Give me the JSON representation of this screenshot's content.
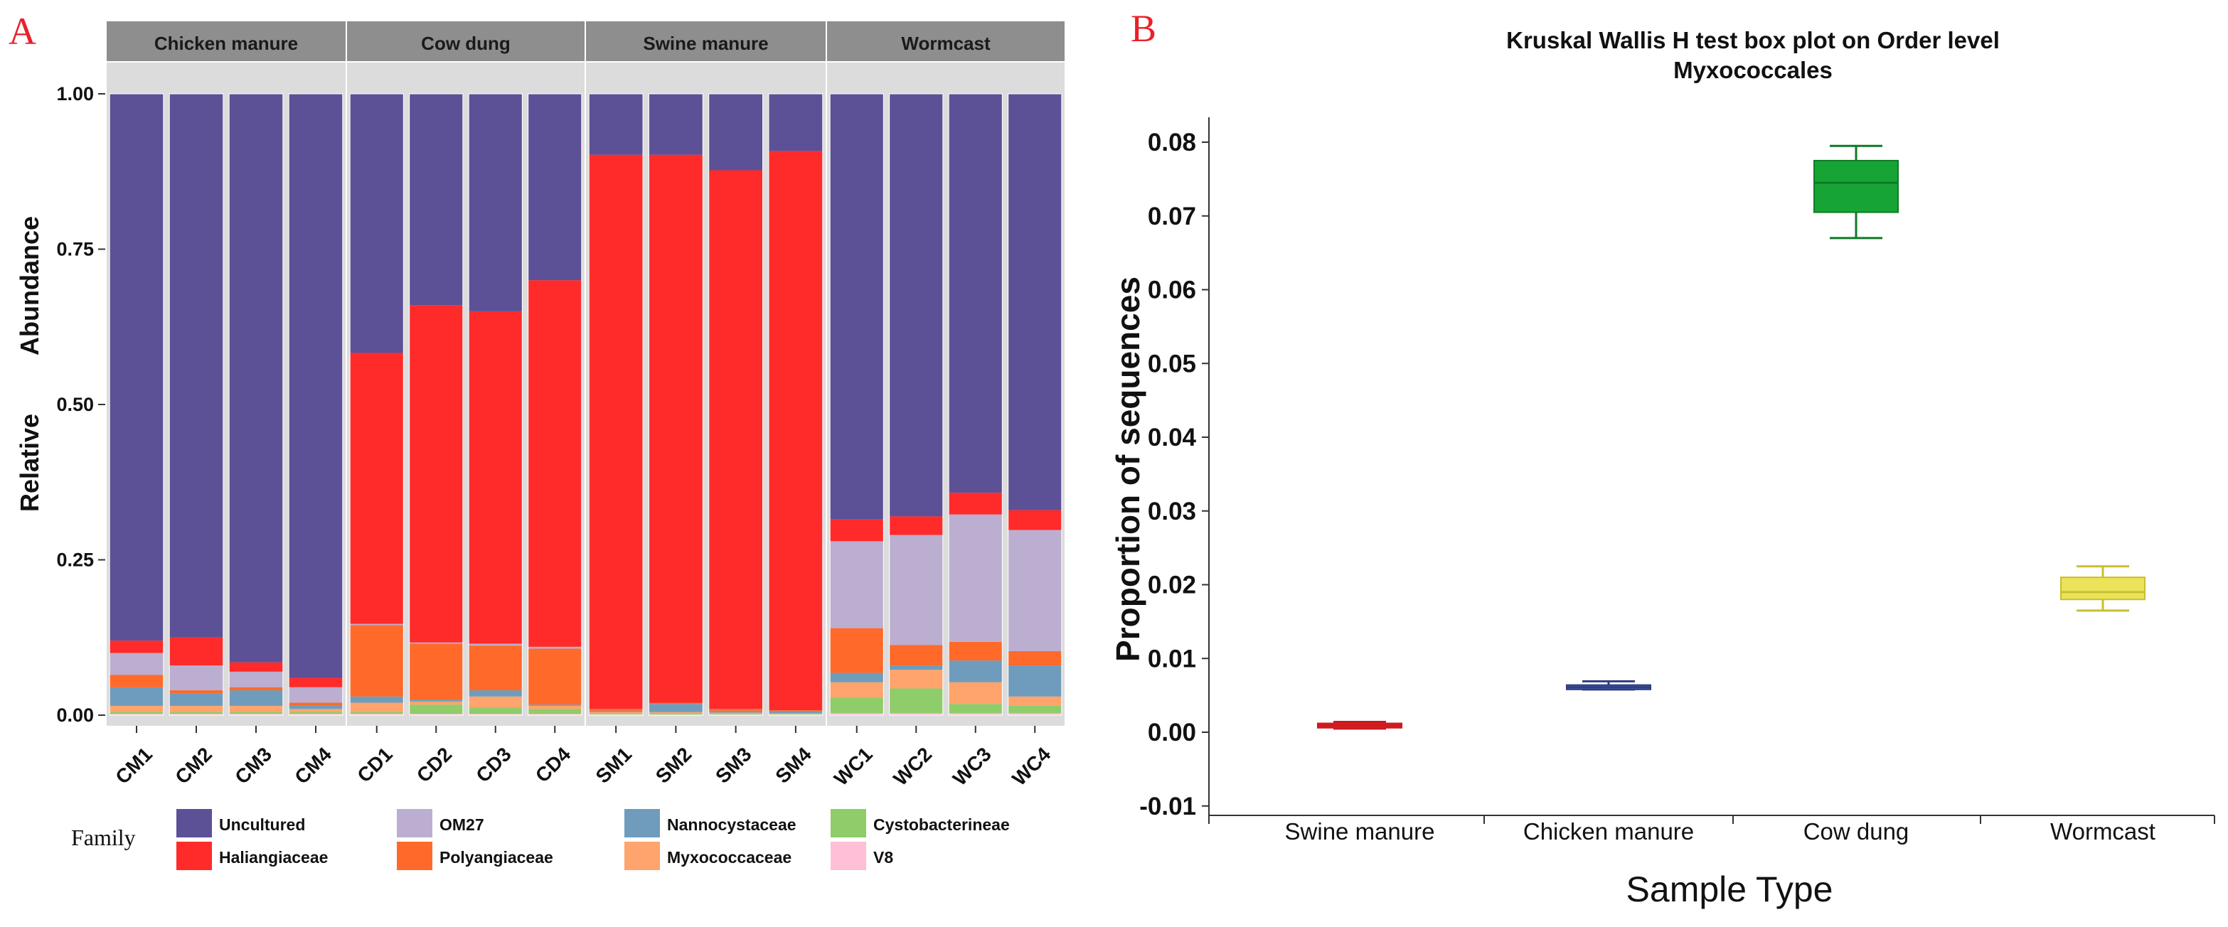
{
  "colors": {
    "Uncultured": "#5c5096",
    "Haliangiaceae": "#ff2b2b",
    "OM27": "#bcaed0",
    "Polyangiaceae": "#ff6a2a",
    "Nannocystaceae": "#6f9cbc",
    "Myxococcaceae": "#ffa46c",
    "Cystobacterineae": "#8fcc6a",
    "V8": "#ffbfd6",
    "panel_bg": "#dcdcdc",
    "strip_bg": "#8e8e8e",
    "label_red": "#e8212c"
  },
  "chart_data": [
    {
      "type": "bar",
      "stacked": true,
      "panel_label": "A",
      "ylabel_words": [
        "Relative",
        "Abundance"
      ],
      "ylim": [
        0,
        1
      ],
      "yticks": [
        "0.00",
        "0.25",
        "0.50",
        "0.75",
        "1.00"
      ],
      "legend_title": "Family",
      "legend": [
        "Uncultured",
        "OM27",
        "Nannocystaceae",
        "Cystobacterineae",
        "Haliangiaceae",
        "Polyangiaceae",
        "Myxococcaceae",
        "V8"
      ],
      "facets": [
        {
          "name": "Chicken manure",
          "samples": [
            {
              "id": "CM1",
              "V8": 0.002,
              "Cystobacterineae": 0.003,
              "Myxococcaceae": 0.01,
              "Nannocystaceae": 0.03,
              "Polyangiaceae": 0.02,
              "OM27": 0.035,
              "Haliangiaceae": 0.02,
              "Uncultured": 0.88
            },
            {
              "id": "CM2",
              "V8": 0.002,
              "Cystobacterineae": 0.003,
              "Myxococcaceae": 0.01,
              "Nannocystaceae": 0.02,
              "Polyangiaceae": 0.005,
              "OM27": 0.04,
              "Haliangiaceae": 0.045,
              "Uncultured": 0.875
            },
            {
              "id": "CM3",
              "V8": 0.002,
              "Cystobacterineae": 0.003,
              "Myxococcaceae": 0.01,
              "Nannocystaceae": 0.025,
              "Polyangiaceae": 0.005,
              "OM27": 0.025,
              "Haliangiaceae": 0.015,
              "Uncultured": 0.915
            },
            {
              "id": "CM4",
              "V8": 0.002,
              "Cystobacterineae": 0.003,
              "Myxococcaceae": 0.005,
              "Nannocystaceae": 0.005,
              "Polyangiaceae": 0.005,
              "OM27": 0.025,
              "Haliangiaceae": 0.015,
              "Uncultured": 0.94
            }
          ]
        },
        {
          "name": "Cow dung",
          "samples": [
            {
              "id": "CD1",
              "V8": 0.002,
              "Cystobacterineae": 0.003,
              "Myxococcaceae": 0.015,
              "Nannocystaceae": 0.01,
              "Polyangiaceae": 0.115,
              "OM27": 0.002,
              "Haliangiaceae": 0.436,
              "Uncultured": 0.417
            },
            {
              "id": "CD2",
              "V8": 0.002,
              "Cystobacterineae": 0.015,
              "Myxococcaceae": 0.005,
              "Nannocystaceae": 0.003,
              "Polyangiaceae": 0.09,
              "OM27": 0.002,
              "Haliangiaceae": 0.543,
              "Uncultured": 0.34
            },
            {
              "id": "CD3",
              "V8": 0.002,
              "Cystobacterineae": 0.01,
              "Myxococcaceae": 0.018,
              "Nannocystaceae": 0.01,
              "Polyangiaceae": 0.072,
              "OM27": 0.003,
              "Haliangiaceae": 0.535,
              "Uncultured": 0.35
            },
            {
              "id": "CD4",
              "V8": 0.002,
              "Cystobacterineae": 0.008,
              "Myxococcaceae": 0.005,
              "Nannocystaceae": 0.002,
              "Polyangiaceae": 0.09,
              "OM27": 0.003,
              "Haliangiaceae": 0.59,
              "Uncultured": 0.3
            }
          ]
        },
        {
          "name": "Swine manure",
          "samples": [
            {
              "id": "SM1",
              "V8": 0.001,
              "Cystobacterineae": 0.001,
              "Myxococcaceae": 0.003,
              "Nannocystaceae": 0.002,
              "Polyangiaceae": 0.003,
              "OM27": 0.0,
              "Haliangiaceae": 0.892,
              "Uncultured": 0.098
            },
            {
              "id": "SM2",
              "V8": 0.001,
              "Cystobacterineae": 0.002,
              "Myxococcaceae": 0.002,
              "Nannocystaceae": 0.013,
              "Polyangiaceae": 0.002,
              "OM27": 0.0,
              "Haliangiaceae": 0.882,
              "Uncultured": 0.098
            },
            {
              "id": "SM3",
              "V8": 0.001,
              "Cystobacterineae": 0.001,
              "Myxococcaceae": 0.002,
              "Nannocystaceae": 0.003,
              "Polyangiaceae": 0.003,
              "OM27": 0.0,
              "Haliangiaceae": 0.867,
              "Uncultured": 0.123
            },
            {
              "id": "SM4",
              "V8": 0.001,
              "Cystobacterineae": 0.001,
              "Myxococcaceae": 0.001,
              "Nannocystaceae": 0.004,
              "Polyangiaceae": 0.001,
              "OM27": 0.0,
              "Haliangiaceae": 0.9,
              "Uncultured": 0.092
            }
          ]
        },
        {
          "name": "Wormcast",
          "samples": [
            {
              "id": "WC1",
              "V8": 0.003,
              "Cystobacterineae": 0.025,
              "Myxococcaceae": 0.025,
              "Nannocystaceae": 0.015,
              "Polyangiaceae": 0.072,
              "OM27": 0.14,
              "Haliangiaceae": 0.035,
              "Uncultured": 0.685
            },
            {
              "id": "WC2",
              "V8": 0.003,
              "Cystobacterineae": 0.04,
              "Myxococcaceae": 0.03,
              "Nannocystaceae": 0.007,
              "Polyangiaceae": 0.033,
              "OM27": 0.177,
              "Haliangiaceae": 0.03,
              "Uncultured": 0.68
            },
            {
              "id": "WC3",
              "V8": 0.003,
              "Cystobacterineae": 0.015,
              "Myxococcaceae": 0.035,
              "Nannocystaceae": 0.035,
              "Polyangiaceae": 0.03,
              "OM27": 0.205,
              "Haliangiaceae": 0.035,
              "Uncultured": 0.642
            },
            {
              "id": "WC4",
              "V8": 0.003,
              "Cystobacterineae": 0.012,
              "Myxococcaceae": 0.015,
              "Nannocystaceae": 0.05,
              "Polyangiaceae": 0.023,
              "OM27": 0.195,
              "Haliangiaceae": 0.032,
              "Uncultured": 0.67
            }
          ]
        }
      ]
    },
    {
      "type": "box",
      "panel_label": "B",
      "title": [
        "Kruskal Wallis H test box plot on Order level",
        "Myxococcales"
      ],
      "ylabel": "Proportion of sequences",
      "xlabel": "Sample Type",
      "ylim": [
        -0.01,
        0.083
      ],
      "yticks": [
        "-0.01",
        "0.00",
        "0.01",
        "0.02",
        "0.03",
        "0.04",
        "0.05",
        "0.06",
        "0.07",
        "0.08"
      ],
      "categories": [
        "Swine manure",
        "Chicken manure",
        "Cow dung",
        "Wormcast"
      ],
      "boxes": [
        {
          "name": "Swine manure",
          "min": 0.0005,
          "q1": 0.0006,
          "median": 0.0009,
          "q3": 0.0012,
          "max": 0.0014,
          "color": "#f2262b",
          "dark": "#c81a1f"
        },
        {
          "name": "Chicken manure",
          "min": 0.0058,
          "q1": 0.0058,
          "median": 0.0061,
          "q3": 0.0064,
          "max": 0.0069,
          "color": "#4a5ba8",
          "dark": "#2f3d82"
        },
        {
          "name": "Cow dung",
          "min": 0.067,
          "q1": 0.0705,
          "median": 0.0745,
          "q3": 0.0775,
          "max": 0.0795,
          "color": "#16a535",
          "dark": "#0f7a26"
        },
        {
          "name": "Wormcast",
          "min": 0.0165,
          "q1": 0.018,
          "median": 0.019,
          "q3": 0.021,
          "max": 0.0225,
          "color": "#ece35a",
          "dark": "#c9bf2f"
        }
      ]
    }
  ]
}
